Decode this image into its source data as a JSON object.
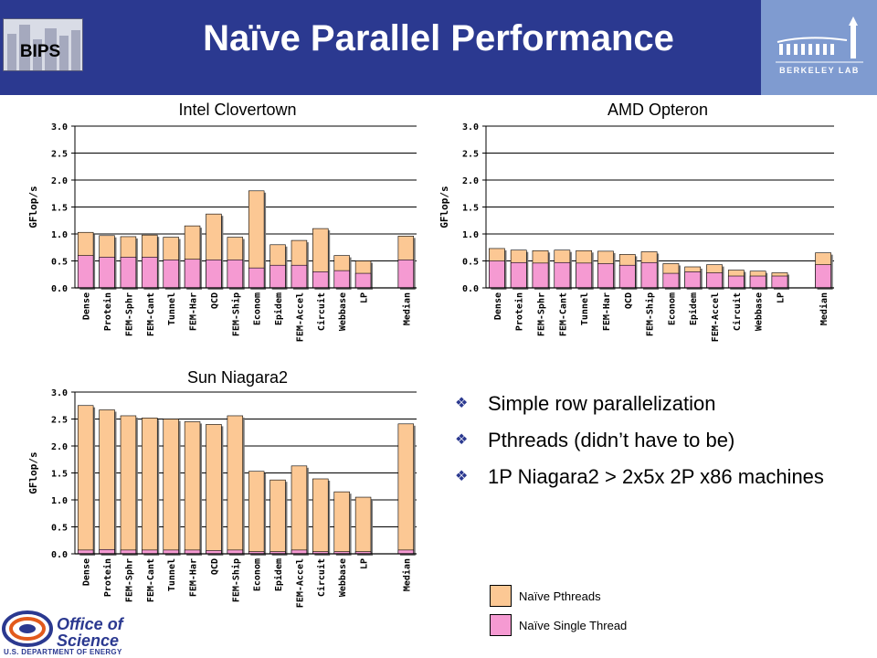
{
  "header": {
    "title": "Naïve Parallel Performance",
    "bips_label": "BIPS",
    "lab_logo_text": "BERKELEY LAB"
  },
  "colors": {
    "header_bg": "#2b3990",
    "pthreads": "#fcc894",
    "single_thread": "#f59ad2",
    "bullet_mark": "#2b3990"
  },
  "bullets": [
    "Simple row parallelization",
    "Pthreads (didn’t have to be)",
    "1P Niagara2 > 2x5x 2P x86 machines"
  ],
  "bullet_icon": "diamond-four-icon",
  "legend": {
    "pthreads": "Naïve Pthreads",
    "single": "Naïve Single Thread"
  },
  "footer": {
    "line1": "Office of",
    "line2": "Science",
    "sub": "U.S. DEPARTMENT OF ENERGY"
  },
  "chart_data": [
    {
      "type": "bar",
      "stacked": true,
      "title": "Intel Clovertown",
      "ylabel": "GFlop/s",
      "ylim": [
        0,
        3.0
      ],
      "yticks": [
        "0.0",
        "0.5",
        "1.0",
        "1.5",
        "2.0",
        "2.5",
        "3.0"
      ],
      "grid": true,
      "categories": [
        "Dense",
        "Protein",
        "FEM-Sphr",
        "FEM-Cant",
        "Tunnel",
        "FEM-Har",
        "QCD",
        "FEM-Ship",
        "Econom",
        "Epidem",
        "FEM-Accel",
        "Circuit",
        "Webbase",
        "LP",
        "",
        "Median"
      ],
      "series": [
        {
          "name": "Naïve Single Thread",
          "values": [
            0.6,
            0.57,
            0.57,
            0.57,
            0.52,
            0.53,
            0.52,
            0.52,
            0.37,
            0.42,
            0.42,
            0.3,
            0.32,
            0.27,
            null,
            0.52
          ]
        },
        {
          "name": "Naïve Pthreads",
          "values": [
            1.03,
            0.97,
            0.95,
            0.98,
            0.94,
            1.15,
            1.37,
            0.94,
            1.8,
            0.8,
            0.88,
            1.1,
            0.6,
            0.5,
            null,
            0.96
          ]
        }
      ]
    },
    {
      "type": "bar",
      "stacked": true,
      "title": "AMD Opteron",
      "ylabel": "GFlop/s",
      "ylim": [
        0,
        3.0
      ],
      "yticks": [
        "0.0",
        "0.5",
        "1.0",
        "1.5",
        "2.0",
        "2.5",
        "3.0"
      ],
      "grid": true,
      "categories": [
        "Dense",
        "Protein",
        "FEM-Sphr",
        "FEM-Cant",
        "Tunnel",
        "FEM-Har",
        "QCD",
        "FEM-Ship",
        "Econom",
        "Epidem",
        "FEM-Accel",
        "Circuit",
        "Webbase",
        "LP",
        "",
        "Median"
      ],
      "series": [
        {
          "name": "Naïve Single Thread",
          "values": [
            0.5,
            0.47,
            0.46,
            0.47,
            0.46,
            0.45,
            0.42,
            0.47,
            0.27,
            0.3,
            0.28,
            0.22,
            0.22,
            0.22,
            null,
            0.43
          ]
        },
        {
          "name": "Naïve Pthreads",
          "values": [
            0.73,
            0.7,
            0.69,
            0.7,
            0.69,
            0.68,
            0.62,
            0.67,
            0.45,
            0.39,
            0.43,
            0.33,
            0.31,
            0.28,
            null,
            0.65
          ]
        }
      ]
    },
    {
      "type": "bar",
      "stacked": true,
      "title": "Sun Niagara2",
      "ylabel": "GFlop/s",
      "ylim": [
        0,
        3.0
      ],
      "yticks": [
        "0.0",
        "0.5",
        "1.0",
        "1.5",
        "2.0",
        "2.5",
        "3.0"
      ],
      "grid": true,
      "categories": [
        "Dense",
        "Protein",
        "FEM-Sphr",
        "FEM-Cant",
        "Tunnel",
        "FEM-Har",
        "QCD",
        "FEM-Ship",
        "Econom",
        "Epidem",
        "FEM-Accel",
        "Circuit",
        "Webbase",
        "LP",
        "",
        "Median"
      ],
      "series": [
        {
          "name": "Naïve Single Thread",
          "values": [
            0.07,
            0.08,
            0.07,
            0.07,
            0.07,
            0.07,
            0.06,
            0.07,
            0.04,
            0.04,
            0.07,
            0.04,
            0.04,
            0.04,
            null,
            0.07
          ]
        },
        {
          "name": "Naïve Pthreads",
          "values": [
            2.75,
            2.67,
            2.56,
            2.52,
            2.5,
            2.45,
            2.4,
            2.56,
            1.53,
            1.37,
            1.63,
            1.39,
            1.15,
            1.05,
            null,
            2.41
          ]
        }
      ]
    }
  ]
}
